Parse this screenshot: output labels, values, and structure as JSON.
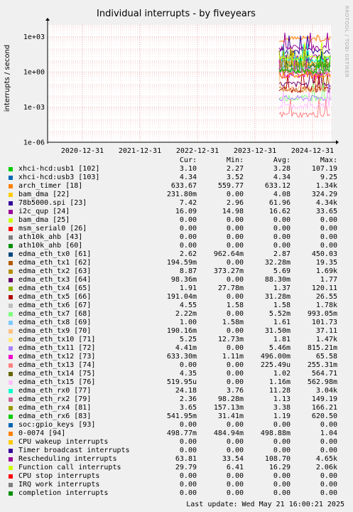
{
  "chart_data": {
    "type": "line",
    "title": "Individual interrupts - by fiveyears",
    "ylabel": "interrupts / second",
    "yscale": "log",
    "ylim": [
      1e-06,
      10000
    ],
    "ytick_labels": [
      "1e-06",
      "1e-03",
      "1e+00",
      "1e+03"
    ],
    "xtick_labels": [
      "2020-12-31",
      "2021-12-31",
      "2022-12-31",
      "2023-12-31",
      "2024-12-31"
    ],
    "watermark": "RRDTOOL / TOBI OETIKER",
    "columns": [
      "Cur:",
      "Min:",
      "Avg:",
      "Max:"
    ],
    "series": [
      {
        "name": "xhci-hcd:usb1 [102]",
        "color": "#00cc00",
        "cur": "3.10",
        "min": "2.27",
        "avg": "3.28",
        "max": "107.19"
      },
      {
        "name": "xhci-hcd:usb3 [103]",
        "color": "#0066b3",
        "cur": "4.34",
        "min": "3.52",
        "avg": "4.34",
        "max": "9.25"
      },
      {
        "name": "arch_timer [18]",
        "color": "#ff8000",
        "cur": "633.67",
        "min": "559.77",
        "avg": "633.12",
        "max": "1.34k"
      },
      {
        "name": "bam_dma [22]",
        "color": "#ffcc00",
        "cur": "231.80m",
        "min": "0.00",
        "avg": "4.08",
        "max": "324.29"
      },
      {
        "name": "78b5000.spi [23]",
        "color": "#330099",
        "cur": "7.42",
        "min": "2.96",
        "avg": "61.96",
        "max": "4.34k"
      },
      {
        "name": "i2c_qup [24]",
        "color": "#990099",
        "cur": "16.09",
        "min": "14.98",
        "avg": "16.62",
        "max": "33.65"
      },
      {
        "name": "bam_dma [25]",
        "color": "#ccff00",
        "cur": "0.00",
        "min": "0.00",
        "avg": "0.00",
        "max": "0.00"
      },
      {
        "name": "msm_serial0 [26]",
        "color": "#ff0000",
        "cur": "0.00",
        "min": "0.00",
        "avg": "0.00",
        "max": "0.00"
      },
      {
        "name": "ath10k_ahb [43]",
        "color": "#808080",
        "cur": "0.00",
        "min": "0.00",
        "avg": "0.00",
        "max": "0.00"
      },
      {
        "name": "ath10k_ahb [60]",
        "color": "#008f00",
        "cur": "0.00",
        "min": "0.00",
        "avg": "0.00",
        "max": "0.00"
      },
      {
        "name": "edma_eth_tx0 [61]",
        "color": "#00487d",
        "cur": "2.62",
        "min": "962.64m",
        "avg": "2.87",
        "max": "450.03"
      },
      {
        "name": "edma_eth_tx1 [62]",
        "color": "#b35a00",
        "cur": "194.59m",
        "min": "0.00",
        "avg": "32.28m",
        "max": "19.35"
      },
      {
        "name": "edma_eth_tx2 [63]",
        "color": "#b38f00",
        "cur": "8.87",
        "min": "373.27m",
        "avg": "5.69",
        "max": "1.69k"
      },
      {
        "name": "edma_eth_tx3 [64]",
        "color": "#6b006b",
        "cur": "98.36m",
        "min": "0.00",
        "avg": "88.30m",
        "max": "1.77"
      },
      {
        "name": "edma_eth_tx4 [65]",
        "color": "#8fb300",
        "cur": "1.91",
        "min": "27.78m",
        "avg": "1.37",
        "max": "120.11"
      },
      {
        "name": "edma_eth_tx5 [66]",
        "color": "#b30000",
        "cur": "191.04m",
        "min": "0.00",
        "avg": "31.28m",
        "max": "26.55"
      },
      {
        "name": "edma_eth_tx6 [67]",
        "color": "#bebebe",
        "cur": "4.55",
        "min": "1.58",
        "avg": "1.58",
        "max": "1.78k"
      },
      {
        "name": "edma_eth_tx7 [68]",
        "color": "#80ff80",
        "cur": "2.22m",
        "min": "0.00",
        "avg": "5.52m",
        "max": "993.05m"
      },
      {
        "name": "edma_eth_tx8 [69]",
        "color": "#80c9ff",
        "cur": "1.00",
        "min": "1.58m",
        "avg": "1.61",
        "max": "101.73"
      },
      {
        "name": "edma_eth_tx9 [70]",
        "color": "#ffc080",
        "cur": "190.16m",
        "min": "0.00",
        "avg": "31.50m",
        "max": "37.11"
      },
      {
        "name": "edma_eth_tx10 [71]",
        "color": "#ffe680",
        "cur": "5.25",
        "min": "12.73m",
        "avg": "1.81",
        "max": "1.47k"
      },
      {
        "name": "edma_eth_tx11 [72]",
        "color": "#aa80ff",
        "cur": "4.41m",
        "min": "0.00",
        "avg": "5.46m",
        "max": "815.21m"
      },
      {
        "name": "edma_eth_tx12 [73]",
        "color": "#ee00cc",
        "cur": "633.30m",
        "min": "1.11m",
        "avg": "496.00m",
        "max": "65.58"
      },
      {
        "name": "edma_eth_tx13 [74]",
        "color": "#ff8080",
        "cur": "0.00",
        "min": "0.00",
        "avg": "225.49u",
        "max": "255.31m"
      },
      {
        "name": "edma_eth_tx14 [75]",
        "color": "#666600",
        "cur": "4.35",
        "min": "0.00",
        "avg": "1.02",
        "max": "564.71"
      },
      {
        "name": "edma_eth_tx15 [76]",
        "color": "#ffbfff",
        "cur": "519.95u",
        "min": "0.00",
        "avg": "1.16m",
        "max": "562.98m"
      },
      {
        "name": "edma_eth_rx0 [77]",
        "color": "#00ffcc",
        "cur": "24.18",
        "min": "3.76",
        "avg": "11.28",
        "max": "3.04k"
      },
      {
        "name": "edma_eth_rx2 [79]",
        "color": "#cc6699",
        "cur": "2.36",
        "min": "98.28m",
        "avg": "1.13",
        "max": "149.19"
      },
      {
        "name": "edma_eth_rx4 [81]",
        "color": "#999900",
        "cur": "3.65",
        "min": "157.13m",
        "avg": "3.38",
        "max": "166.21"
      },
      {
        "name": "edma_eth_rx6 [83]",
        "color": "#00cc00",
        "cur": "541.95m",
        "min": "31.41m",
        "avg": "1.19",
        "max": "620.50"
      },
      {
        "name": "soc:gpio_keys [93]",
        "color": "#0066b3",
        "cur": "0.00",
        "min": "0.00",
        "avg": "0.00",
        "max": "0.00"
      },
      {
        "name": "0-0074 [94]",
        "color": "#ff8000",
        "cur": "498.77m",
        "min": "484.94m",
        "avg": "498.88m",
        "max": "1.04"
      },
      {
        "name": "CPU wakeup interrupts",
        "color": "#ffcc00",
        "cur": "0.00",
        "min": "0.00",
        "avg": "0.00",
        "max": "0.00"
      },
      {
        "name": "Timer broadcast interrupts",
        "color": "#330099",
        "cur": "0.00",
        "min": "0.00",
        "avg": "0.00",
        "max": "0.00"
      },
      {
        "name": "Rescheduling interrupts",
        "color": "#990099",
        "cur": "63.81",
        "min": "33.54",
        "avg": "108.70",
        "max": "4.65k"
      },
      {
        "name": "Function call interrupts",
        "color": "#ccff00",
        "cur": "29.79",
        "min": "6.41",
        "avg": "16.29",
        "max": "2.06k"
      },
      {
        "name": "CPU stop interrupts",
        "color": "#ff0000",
        "cur": "0.00",
        "min": "0.00",
        "avg": "0.00",
        "max": "0.00"
      },
      {
        "name": "IRQ work interrupts",
        "color": "#808080",
        "cur": "0.00",
        "min": "0.00",
        "avg": "0.00",
        "max": "0.00"
      },
      {
        "name": "completion interrupts",
        "color": "#008f00",
        "cur": "0.00",
        "min": "0.00",
        "avg": "0.00",
        "max": "0.00"
      }
    ]
  },
  "footer": {
    "last_update": "Last update: Wed May 21 16:00:21 2025"
  }
}
